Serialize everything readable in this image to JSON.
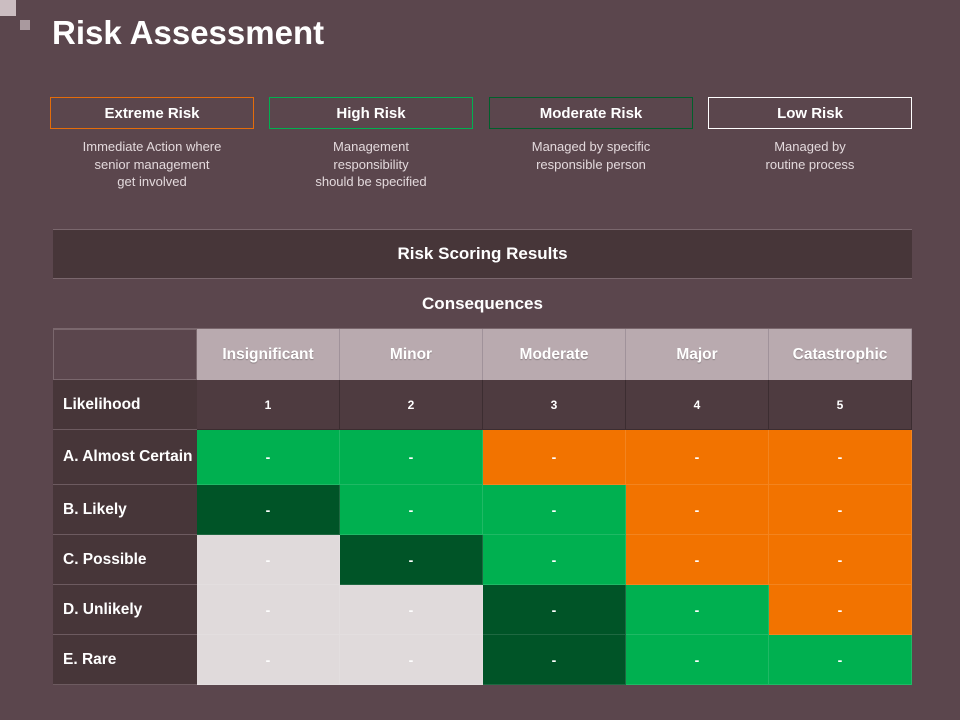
{
  "title": "Risk Assessment",
  "legend": [
    {
      "label": "Extreme Risk",
      "border": "#e46c0a",
      "desc": [
        "Immediate Action where",
        "senior management",
        "get involved"
      ]
    },
    {
      "label": "High Risk",
      "border": "#00b050",
      "desc": [
        "Management",
        "responsibility",
        "should be specified"
      ]
    },
    {
      "label": "Moderate Risk",
      "border": "#00602b",
      "desc": [
        "Managed by specific",
        "responsible person"
      ]
    },
    {
      "label": "Low Risk",
      "border": "#ffffff",
      "desc": [
        "Managed by",
        "routine process"
      ]
    }
  ],
  "matrix": {
    "heading": "Risk Scoring Results",
    "subheading": "Consequences",
    "columns": [
      "Insignificant",
      "Minor",
      "Moderate",
      "Major",
      "Catastrophic"
    ],
    "likelihood_label": "Likelihood",
    "scores": [
      "1",
      "2",
      "3",
      "4",
      "5"
    ],
    "rows": [
      {
        "label": "A. Almost Certain",
        "cells": [
          "-",
          "-",
          "-",
          "-",
          "-"
        ],
        "levels": [
          "high",
          "high",
          "extreme",
          "extreme",
          "extreme"
        ]
      },
      {
        "label": "B. Likely",
        "cells": [
          "-",
          "-",
          "-",
          "-",
          "-"
        ],
        "levels": [
          "moderate",
          "high",
          "high",
          "extreme",
          "extreme"
        ]
      },
      {
        "label": "C. Possible",
        "cells": [
          "-",
          "-",
          "-",
          "-",
          "-"
        ],
        "levels": [
          "low",
          "moderate",
          "high",
          "extreme",
          "extreme"
        ]
      },
      {
        "label": "D. Unlikely",
        "cells": [
          "-",
          "-",
          "-",
          "-",
          "-"
        ],
        "levels": [
          "low",
          "low",
          "moderate",
          "high",
          "extreme"
        ]
      },
      {
        "label": "E. Rare",
        "cells": [
          "-",
          "-",
          "-",
          "-",
          "-"
        ],
        "levels": [
          "low",
          "low",
          "moderate",
          "high",
          "high"
        ]
      }
    ]
  },
  "colors": {
    "extreme": "#f27300",
    "high": "#00b050",
    "moderate": "#005427",
    "low": "#e0dadb"
  }
}
